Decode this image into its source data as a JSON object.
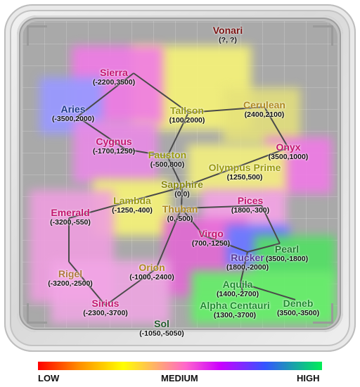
{
  "legend": {
    "low": "LOW",
    "medium": "MEDIUM",
    "high": "HIGH"
  },
  "locations": [
    {
      "name": "Vonari",
      "coords": "(?, ?)",
      "color": "#7a1212"
    },
    {
      "name": "Sierra",
      "coords": "(-2200,3500)",
      "color": "#c2166e"
    },
    {
      "name": "Aries",
      "coords": "(-3500,2000)",
      "color": "#1e3a8a"
    },
    {
      "name": "Cygnus",
      "coords": "(-1700,1250)",
      "color": "#c2166e"
    },
    {
      "name": "Tallson",
      "coords": "(100,2000)",
      "color": "#9a9a10"
    },
    {
      "name": "Cerulean",
      "coords": "(2400,2100)",
      "color": "#b08a22"
    },
    {
      "name": "Onyx",
      "coords": "(3500,1000)",
      "color": "#c2166e"
    },
    {
      "name": "Fauston",
      "coords": "(-500,800)",
      "color": "#9a9a10"
    },
    {
      "name": "Olympus Prime",
      "coords": "(1250,500)",
      "color": "#9a9a10"
    },
    {
      "name": "Sapphire",
      "coords": "(0,0)",
      "color": "#8a8a10"
    },
    {
      "name": "Lambda",
      "coords": "(-1250,-400)",
      "color": "#9a9a10"
    },
    {
      "name": "Thuban",
      "coords": "(0,-500)",
      "color": "#b08a22"
    },
    {
      "name": "Pices",
      "coords": "(1800,-300)",
      "color": "#c2166e"
    },
    {
      "name": "Emerald",
      "coords": "(-3200,-550)",
      "color": "#c2166e"
    },
    {
      "name": "Virgo",
      "coords": "(700,-1250)",
      "color": "#c2166e"
    },
    {
      "name": "Pearl",
      "coords": "(3500,-1800)",
      "color": "#1f7a2e"
    },
    {
      "name": "Rucker",
      "coords": "(1800,-2000)",
      "color": "#5a3a9a"
    },
    {
      "name": "Rigel",
      "coords": "(-3200,-2500)",
      "color": "#b07a40"
    },
    {
      "name": "Orion",
      "coords": "(-1000,-2400)",
      "color": "#b08a22"
    },
    {
      "name": "Aquila",
      "coords": "(1400,-2700)",
      "color": "#1f8a2e"
    },
    {
      "name": "Alpha Centauri",
      "coords": "(1300,-3700)",
      "color": "#1f8a2e"
    },
    {
      "name": "Deneb",
      "coords": "(3500,-3500)",
      "color": "#1f8a2e"
    },
    {
      "name": "Sirius",
      "coords": "(-2300,-3700)",
      "color": "#c2166e"
    },
    {
      "name": "Sol",
      "coords": "(-1050,-5050)",
      "color": "#1f5a2a"
    }
  ],
  "links": [
    [
      "Sierra",
      "Tallson"
    ],
    [
      "Sierra",
      "Aries"
    ],
    [
      "Aries",
      "Cygnus"
    ],
    [
      "Cygnus",
      "Fauston"
    ],
    [
      "Tallson",
      "Fauston"
    ],
    [
      "Tallson",
      "Cerulean"
    ],
    [
      "Cerulean",
      "Onyx"
    ],
    [
      "Onyx",
      "Olympus Prime"
    ],
    [
      "Fauston",
      "Sapphire"
    ],
    [
      "Olympus Prime",
      "Sapphire"
    ],
    [
      "Sapphire",
      "Lambda"
    ],
    [
      "Sapphire",
      "Thuban"
    ],
    [
      "Lambda",
      "Emerald"
    ],
    [
      "Emerald",
      "Rigel"
    ],
    [
      "Thuban",
      "Pices"
    ],
    [
      "Thuban",
      "Virgo"
    ],
    [
      "Thuban",
      "Orion"
    ],
    [
      "Pices",
      "Pearl"
    ],
    [
      "Virgo",
      "Rucker"
    ],
    [
      "Rucker",
      "Pearl"
    ],
    [
      "Rucker",
      "Aquila"
    ],
    [
      "Aquila",
      "Alpha Centauri"
    ],
    [
      "Aquila",
      "Deneb"
    ],
    [
      "Orion",
      "Sirius"
    ],
    [
      "Rigel",
      "Sirius"
    ]
  ]
}
